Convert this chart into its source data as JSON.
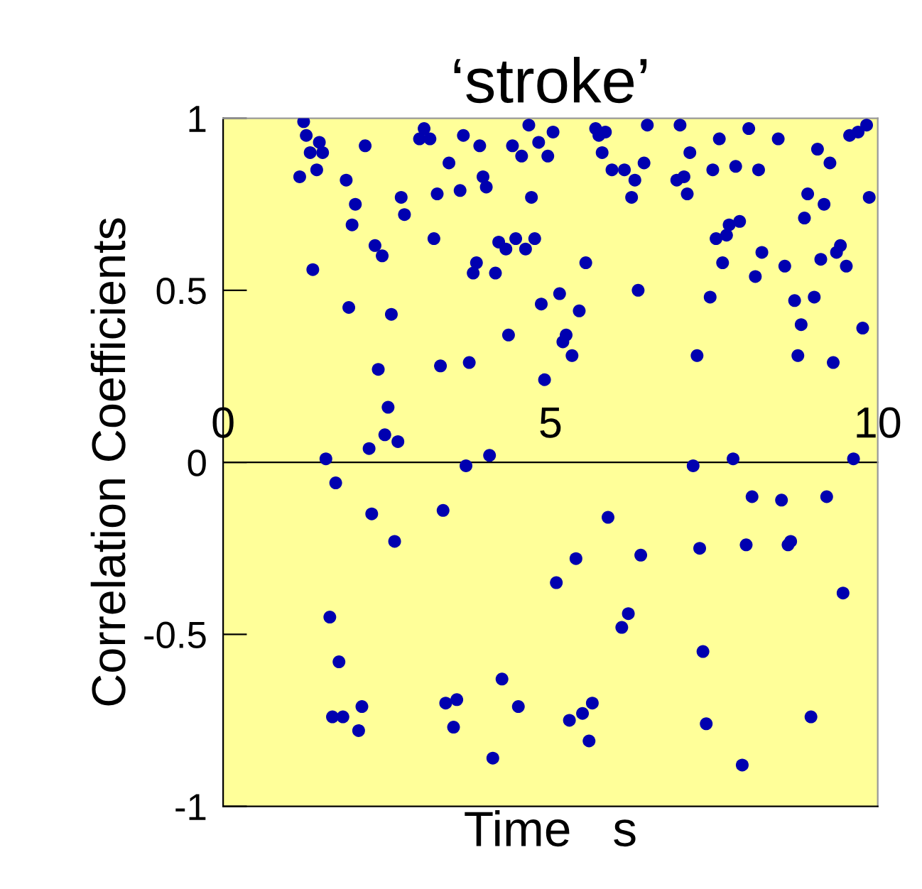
{
  "chart_data": {
    "type": "scatter",
    "title": "‘stroke’",
    "xlabel": "Time   s",
    "ylabel": "Correlation Coefficients",
    "xlim": [
      0,
      10
    ],
    "xticks": [
      0,
      5,
      10
    ],
    "ylim": [
      -1,
      1
    ],
    "yticks": [
      -1,
      -0.5,
      0,
      0.5,
      1
    ],
    "grid": false,
    "legend": false,
    "marker": "circle",
    "color": "#0000b0",
    "x": [
      1.23,
      1.27,
      1.47,
      1.33,
      1.52,
      1.43,
      1.17,
      1.88,
      2.17,
      2.02,
      1.97,
      1.37,
      2.32,
      2.43,
      1.92,
      2.57,
      2.37,
      2.52,
      2.47,
      2.23,
      2.67,
      1.57,
      3.07,
      3.0,
      3.16,
      3.45,
      2.72,
      2.77,
      3.27,
      3.22,
      3.32,
      3.67,
      3.92,
      3.62,
      3.97,
      4.02,
      4.42,
      4.56,
      4.67,
      4.82,
      5.04,
      4.96,
      4.71,
      5.69,
      5.74,
      5.84,
      5.79,
      6.48,
      6.43,
      5.94,
      6.13,
      6.29,
      6.24,
      4.21,
      4.47,
      4.32,
      4.62,
      4.76,
      3.87,
      3.82,
      4.16,
      5.54,
      5.14,
      4.86,
      5.44,
      6.34,
      4.36,
      5.24,
      5.19,
      5.33,
      3.76,
      4.91,
      4.07,
      3.71,
      6.98,
      7.58,
      8.03,
      8.48,
      7.13,
      7.48,
      7.83,
      8.18,
      9.08,
      9.27,
      9.57,
      9.7,
      9.83,
      6.93,
      7.04,
      7.09,
      8.93,
      9.18,
      9.87,
      8.88,
      7.73,
      7.89,
      7.53,
      7.69,
      9.43,
      9.37,
      8.23,
      9.13,
      9.52,
      7.63,
      8.58,
      8.13,
      7.44,
      8.73,
      9.03,
      8.83,
      9.77,
      7.24,
      8.78,
      9.32,
      7.18,
      7.79,
      9.63,
      1.72,
      2.27,
      3.36,
      2.62,
      1.63,
      1.77,
      1.67,
      1.83,
      2.12,
      2.07,
      3.4,
      5.88,
      5.39,
      6.38,
      5.09,
      6.19,
      6.09,
      4.26,
      3.57,
      3.52,
      4.51,
      4.12,
      5.64,
      5.49,
      5.29,
      5.59,
      8.08,
      8.53,
      9.22,
      7.28,
      7.99,
      8.63,
      8.67,
      9.47,
      7.33,
      7.38,
      8.98,
      7.93
    ],
    "values": [
      0.99,
      0.95,
      0.93,
      0.9,
      0.9,
      0.85,
      0.83,
      0.82,
      0.92,
      0.75,
      0.69,
      0.56,
      0.63,
      0.6,
      0.45,
      0.43,
      0.27,
      0.16,
      0.08,
      0.04,
      0.06,
      0.01,
      0.97,
      0.94,
      0.94,
      0.87,
      0.77,
      0.72,
      0.78,
      0.65,
      0.28,
      0.95,
      0.92,
      0.79,
      0.83,
      0.8,
      0.92,
      0.89,
      0.98,
      0.93,
      0.96,
      0.89,
      0.77,
      0.97,
      0.95,
      0.96,
      0.9,
      0.98,
      0.87,
      0.85,
      0.85,
      0.82,
      0.77,
      0.64,
      0.65,
      0.62,
      0.62,
      0.65,
      0.58,
      0.55,
      0.55,
      0.58,
      0.49,
      0.46,
      0.44,
      0.5,
      0.37,
      0.37,
      0.35,
      0.31,
      0.29,
      0.24,
      0.02,
      -0.01,
      0.98,
      0.94,
      0.97,
      0.94,
      0.9,
      0.85,
      0.86,
      0.85,
      0.91,
      0.87,
      0.95,
      0.96,
      0.98,
      0.82,
      0.83,
      0.78,
      0.78,
      0.75,
      0.77,
      0.71,
      0.69,
      0.7,
      0.65,
      0.66,
      0.63,
      0.61,
      0.61,
      0.59,
      0.57,
      0.58,
      0.57,
      0.54,
      0.48,
      0.47,
      0.48,
      0.4,
      0.39,
      0.31,
      0.31,
      0.29,
      -0.01,
      0.01,
      0.01,
      -0.06,
      -0.15,
      -0.14,
      -0.23,
      -0.45,
      -0.58,
      -0.74,
      -0.74,
      -0.71,
      -0.78,
      -0.7,
      -0.16,
      -0.28,
      -0.27,
      -0.35,
      -0.44,
      -0.48,
      -0.63,
      -0.69,
      -0.77,
      -0.71,
      -0.86,
      -0.7,
      -0.73,
      -0.75,
      -0.81,
      -0.1,
      -0.11,
      -0.1,
      -0.25,
      -0.24,
      -0.24,
      -0.23,
      -0.38,
      -0.55,
      -0.76,
      -0.74,
      -0.88
    ]
  }
}
